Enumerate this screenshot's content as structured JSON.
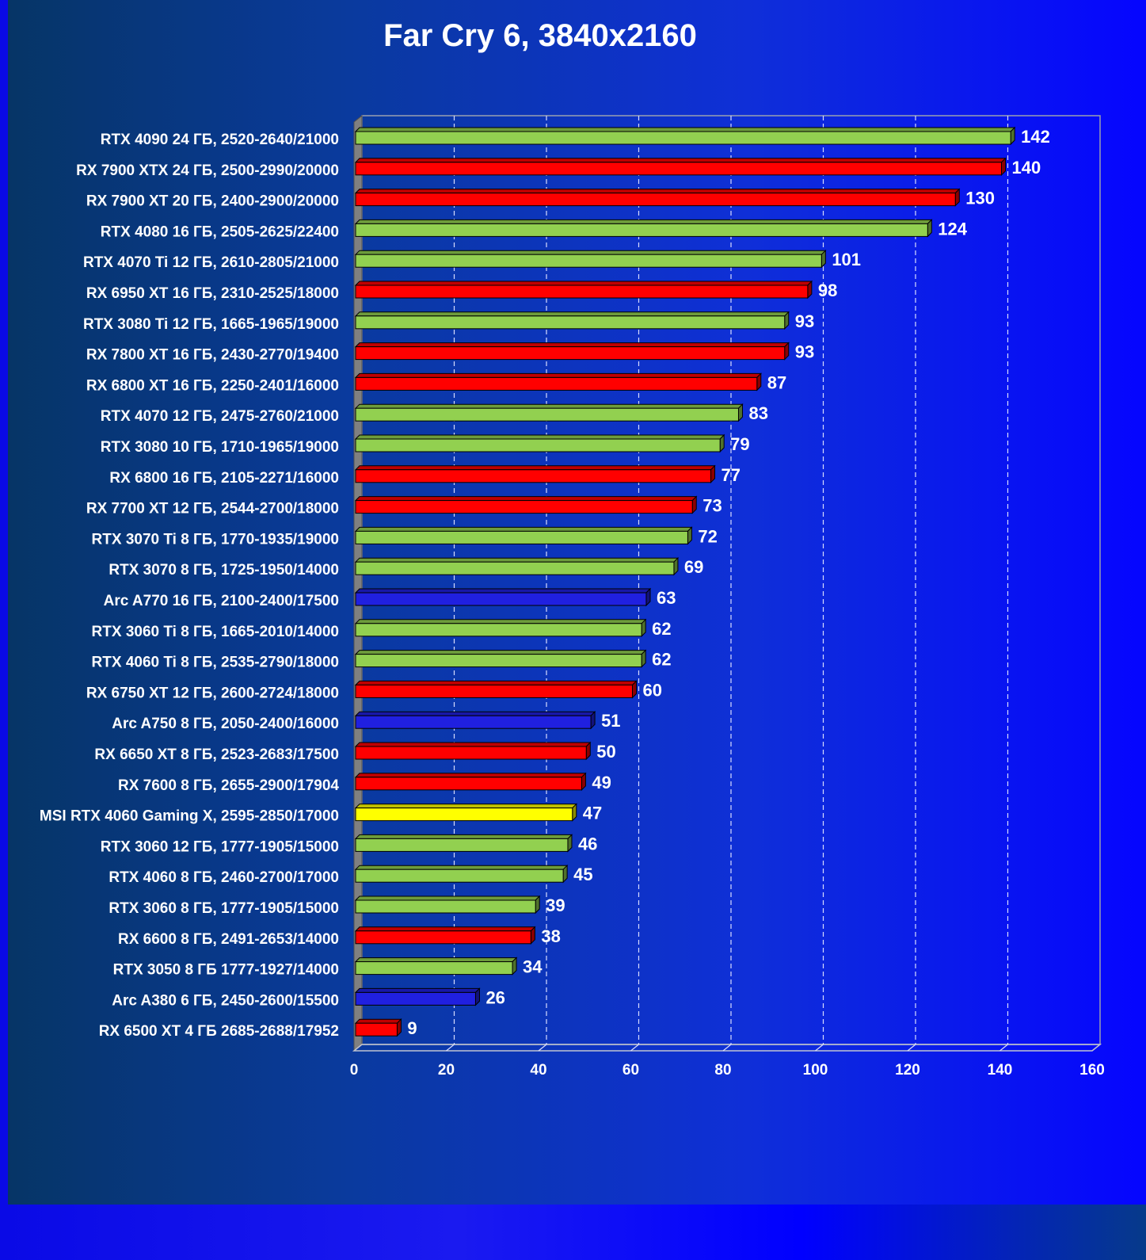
{
  "chart_data": {
    "type": "bar",
    "orientation": "horizontal",
    "title": "Far Cry 6, 3840x2160",
    "xlim": [
      0,
      160
    ],
    "x_ticks": [
      0,
      20,
      40,
      60,
      80,
      100,
      120,
      140,
      160
    ],
    "grid": true,
    "categories": [
      "RTX 4090 24 ГБ, 2520-2640/21000",
      "RX 7900 XTX 24 ГБ, 2500-2990/20000",
      "RX 7900 XT 20 ГБ, 2400-2900/20000",
      "RTX 4080 16 ГБ, 2505-2625/22400",
      "RTX 4070 Ti 12 ГБ, 2610-2805/21000",
      "RX 6950 XT 16 ГБ, 2310-2525/18000",
      "RTX 3080 Ti 12 ГБ, 1665-1965/19000",
      "RX 7800 XT 16 ГБ, 2430-2770/19400",
      "RX 6800 XT 16 ГБ, 2250-2401/16000",
      "RTX 4070 12 ГБ, 2475-2760/21000",
      "RTX 3080 10 ГБ, 1710-1965/19000",
      "RX 6800 16 ГБ, 2105-2271/16000",
      "RX 7700 XT 12 ГБ, 2544-2700/18000",
      "RTX 3070 Ti 8 ГБ, 1770-1935/19000",
      "RTX 3070 8 ГБ, 1725-1950/14000",
      "Arc A770 16 ГБ, 2100-2400/17500",
      "RTX 3060 Ti 8 ГБ, 1665-2010/14000",
      "RTX 4060 Ti 8 ГБ, 2535-2790/18000",
      "RX 6750 XT 12 ГБ, 2600-2724/18000",
      "Arc A750 8 ГБ, 2050-2400/16000",
      "RX 6650 XT 8 ГБ, 2523-2683/17500",
      "RX 7600 8 ГБ, 2655-2900/17904",
      "MSI RTX 4060 Gaming X, 2595-2850/17000",
      "RTX 3060 12 ГБ, 1777-1905/15000",
      "RTX 4060 8 ГБ, 2460-2700/17000",
      "RTX 3060 8 ГБ, 1777-1905/15000",
      "RX 6600 8 ГБ, 2491-2653/14000",
      "RTX 3050 8 ГБ 1777-1927/14000",
      "Arc A380 6 ГБ, 2450-2600/15500",
      "RX 6500 XT 4 ГБ 2685-2688/17952"
    ],
    "values": [
      142,
      140,
      130,
      124,
      101,
      98,
      93,
      93,
      87,
      83,
      79,
      77,
      73,
      72,
      69,
      63,
      62,
      62,
      60,
      51,
      50,
      49,
      47,
      46,
      45,
      39,
      38,
      34,
      26,
      9
    ],
    "bar_colors": [
      "#92d050",
      "#ff0000",
      "#ff0000",
      "#92d050",
      "#92d050",
      "#ff0000",
      "#92d050",
      "#ff0000",
      "#ff0000",
      "#92d050",
      "#92d050",
      "#ff0000",
      "#ff0000",
      "#92d050",
      "#92d050",
      "#2020e0",
      "#92d050",
      "#92d050",
      "#ff0000",
      "#2020e0",
      "#ff0000",
      "#ff0000",
      "#ffff00",
      "#92d050",
      "#92d050",
      "#92d050",
      "#ff0000",
      "#92d050",
      "#2020e0",
      "#ff0000"
    ],
    "xlabel": "",
    "ylabel": ""
  }
}
